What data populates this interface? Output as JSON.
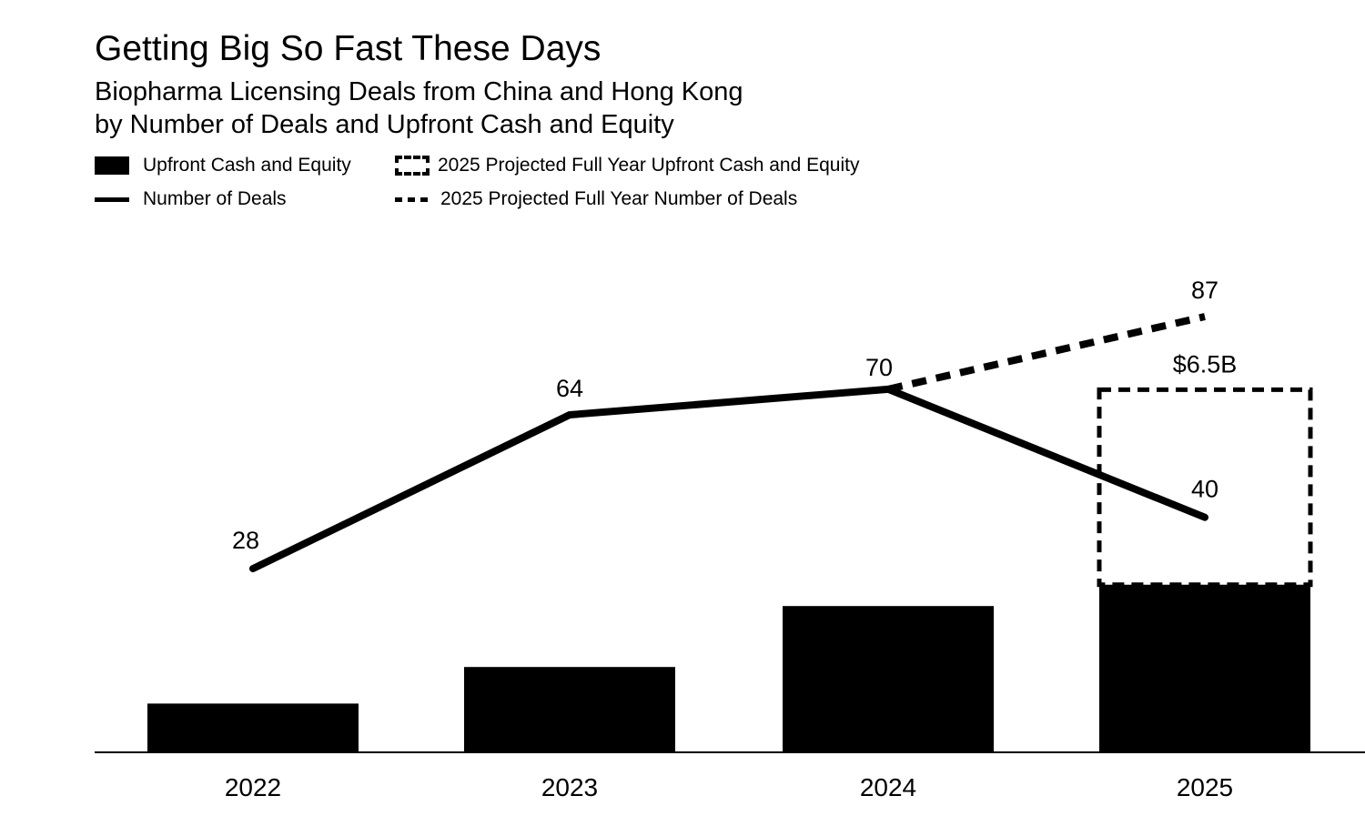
{
  "title": "Getting Big So Fast These Days",
  "subtitle_line1": "Biopharma Licensing Deals from China and Hong Kong",
  "subtitle_line2": "by Number of Deals and Upfront Cash and Equity",
  "legend": {
    "bar": "Upfront Cash and Equity",
    "bar_projected": "2025 Projected Full Year Upfront Cash and Equity",
    "line": "Number of Deals",
    "line_projected": "2025 Projected Full Year Number of Deals"
  },
  "chart_data": {
    "type": "bar+line",
    "categories": [
      "2022",
      "2023",
      "2024",
      "2025"
    ],
    "series": [
      {
        "name": "Upfront Cash and Equity",
        "type": "bar",
        "unit": "$B",
        "values": [
          1.6,
          2.8,
          4.8,
          5.5
        ]
      },
      {
        "name": "2025 Projected Full Year Upfront Cash and Equity",
        "type": "bar",
        "style": "dashed",
        "unit": "$B",
        "values": [
          null,
          null,
          null,
          11.9
        ],
        "data_labels": [
          null,
          null,
          null,
          "$6.5B"
        ]
      },
      {
        "name": "Number of Deals",
        "type": "line",
        "values": [
          28,
          64,
          70,
          40
        ],
        "data_labels": [
          "28",
          "64",
          "70",
          "40"
        ]
      },
      {
        "name": "2025 Projected Full Year Number of Deals",
        "type": "line",
        "style": "dashed",
        "values": [
          null,
          null,
          70,
          87
        ],
        "data_labels": [
          null,
          null,
          null,
          "87"
        ]
      }
    ],
    "bar_axis_range": [
      0,
      20
    ],
    "line_axis_range": [
      -15,
      110
    ],
    "grid": false,
    "legend_position": "top-left",
    "colors": {
      "bars": "#000000",
      "lines": "#000000",
      "background": "#ffffff"
    }
  }
}
